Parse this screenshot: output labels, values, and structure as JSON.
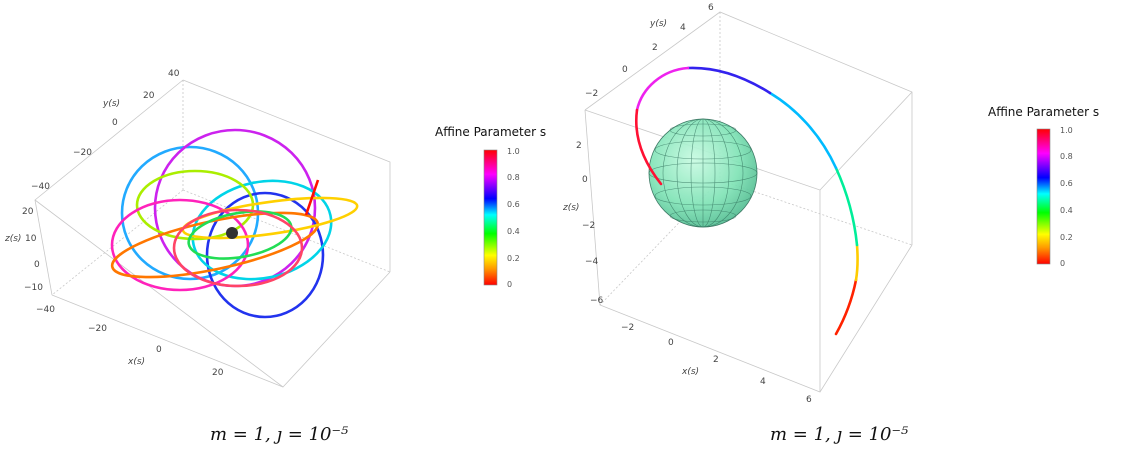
{
  "chart_data": [
    {
      "type": "line",
      "title": "",
      "caption": "m = 1, ȷ = 10⁻⁵",
      "xlabel": "x(s)",
      "ylabel": "y(s)",
      "zlabel": "z(s)",
      "x_ticks": [
        "−40",
        "−20",
        "0",
        "20"
      ],
      "y_ticks": [
        "−40",
        "−20",
        "0",
        "20",
        "40"
      ],
      "z_ticks": [
        "−10",
        "0",
        "10",
        "20"
      ],
      "xlim": [
        -40,
        40
      ],
      "ylim": [
        -40,
        40
      ],
      "zlim": [
        -12,
        22
      ],
      "colorbar": {
        "title": "Affine Parameter s",
        "ticks": [
          "0",
          "0.2",
          "0.4",
          "0.6",
          "0.8",
          "1.0"
        ],
        "range": [
          0,
          1
        ]
      },
      "series": [
        {
          "description": "precessing geodesic orbit around central black hole, colored by affine parameter s from 0 (red) to 1 (red)"
        }
      ]
    },
    {
      "type": "line",
      "title": "",
      "caption": "m = 1, ȷ = 10⁻⁵",
      "xlabel": "x(s)",
      "ylabel": "y(s)",
      "zlabel": "z(s)",
      "x_ticks": [
        "−2",
        "0",
        "2",
        "4",
        "6"
      ],
      "y_ticks": [
        "−2",
        "0",
        "2",
        "4",
        "6"
      ],
      "z_ticks": [
        "−6",
        "−4",
        "−2",
        "0",
        "2"
      ],
      "xlim": [
        -3,
        6
      ],
      "ylim": [
        -3,
        6
      ],
      "zlim": [
        -6,
        3
      ],
      "colorbar": {
        "title": "Affine Parameter s",
        "ticks": [
          "0",
          "0.2",
          "0.4",
          "0.6",
          "0.8",
          "1.0"
        ],
        "range": [
          0,
          1
        ]
      },
      "series": [
        {
          "description": "plunging geodesic around a translucent sphere, colored by affine parameter s"
        }
      ]
    }
  ],
  "colors": {
    "gradient": [
      "#ff0000",
      "#ff8800",
      "#ffff00",
      "#00ff00",
      "#00ffff",
      "#0000ff",
      "#ff00ff",
      "#ff0000"
    ],
    "sphere": "#7fe0b0",
    "box": "#bfbfbf"
  }
}
